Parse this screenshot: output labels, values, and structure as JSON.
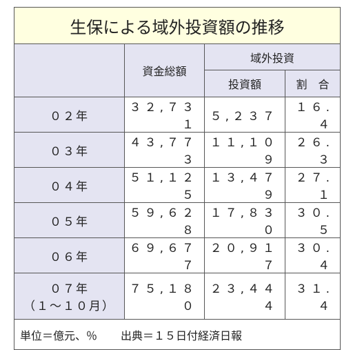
{
  "title": "生保による域外投資額の推移",
  "header": {
    "total": "資金総額",
    "group": "域外投資",
    "sub": [
      "投資額",
      "割　合"
    ]
  },
  "rows": [
    {
      "label": "０２年",
      "cells": [
        "３２,７３１",
        "５,２３７",
        "１６.４"
      ]
    },
    {
      "label": "０３年",
      "cells": [
        "４３,７７３",
        "１１,１０９",
        "２６.３"
      ]
    },
    {
      "label": "０４年",
      "cells": [
        "５１,１２５",
        "１３,４７９",
        "２７.１"
      ]
    },
    {
      "label": "０５年",
      "cells": [
        "５９,６２８",
        "１７,８３０",
        "３０.５"
      ]
    },
    {
      "label": "０６年",
      "cells": [
        "６９,６７７",
        "２０,９１７",
        "３０.４"
      ]
    },
    {
      "label": "０７年",
      "sublabel": "（１～１０月）",
      "cells": [
        "７５,１８０",
        "２３,４４４",
        "３１.４"
      ]
    }
  ],
  "footer": {
    "unit": "単位＝億元、％",
    "source": "出典＝１５日付経済日報"
  }
}
